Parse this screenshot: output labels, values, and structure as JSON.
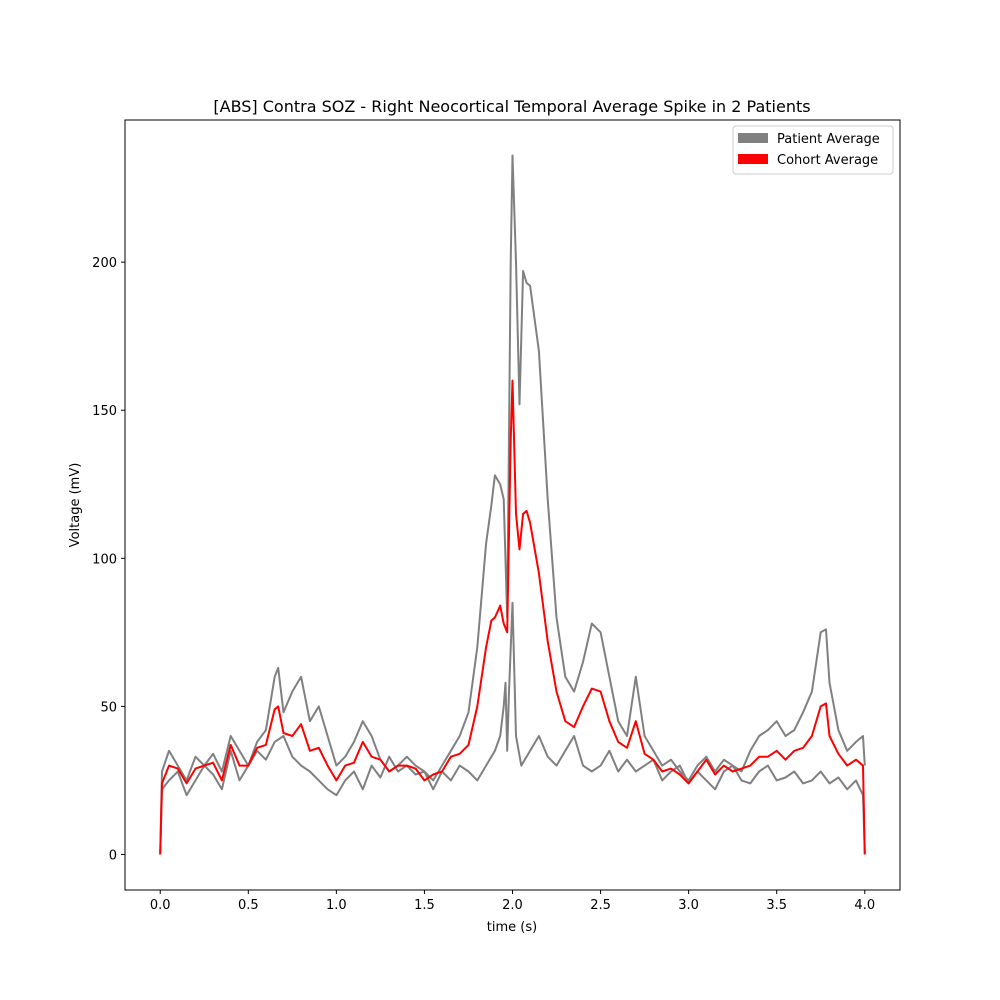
{
  "chart_data": {
    "type": "line",
    "title": "[ABS] Contra SOZ - Right Neocortical Temporal Average Spike in 2 Patients",
    "xlabel": "time (s)",
    "ylabel": "Voltage (mV)",
    "xlim": [
      -0.2,
      4.2
    ],
    "ylim": [
      -12,
      248
    ],
    "xticks": [
      0.0,
      0.5,
      1.0,
      1.5,
      2.0,
      2.5,
      3.0,
      3.5,
      4.0
    ],
    "xtick_labels": [
      "0.0",
      "0.5",
      "1.0",
      "1.5",
      "2.0",
      "2.5",
      "3.0",
      "3.5",
      "4.0"
    ],
    "yticks": [
      0,
      50,
      100,
      150,
      200
    ],
    "ytick_labels": [
      "0",
      "50",
      "100",
      "150",
      "200"
    ],
    "grid": false,
    "legend": {
      "placement": "top-right",
      "entries": [
        {
          "label": "Patient Average",
          "color": "#808080"
        },
        {
          "label": "Cohort Average",
          "color": "#ff0000"
        }
      ]
    },
    "series": [
      {
        "color": "#808080",
        "x": [
          0,
          0.01,
          0.05,
          0.1,
          0.15,
          0.2,
          0.25,
          0.3,
          0.35,
          0.4,
          0.45,
          0.5,
          0.55,
          0.6,
          0.65,
          0.67,
          0.7,
          0.75,
          0.8,
          0.85,
          0.9,
          0.95,
          1.0,
          1.05,
          1.1,
          1.15,
          1.2,
          1.25,
          1.3,
          1.35,
          1.4,
          1.45,
          1.5,
          1.55,
          1.6,
          1.65,
          1.7,
          1.75,
          1.8,
          1.85,
          1.88,
          1.9,
          1.93,
          1.95,
          1.97,
          1.99,
          2.0,
          2.02,
          2.04,
          2.06,
          2.08,
          2.1,
          2.15,
          2.2,
          2.25,
          2.3,
          2.35,
          2.4,
          2.45,
          2.5,
          2.55,
          2.6,
          2.65,
          2.7,
          2.75,
          2.8,
          2.85,
          2.9,
          2.95,
          3.0,
          3.05,
          3.1,
          3.15,
          3.2,
          3.25,
          3.3,
          3.35,
          3.4,
          3.45,
          3.5,
          3.55,
          3.6,
          3.65,
          3.7,
          3.75,
          3.78,
          3.8,
          3.85,
          3.9,
          3.95,
          3.99,
          4.0
        ],
        "values": [
          0,
          28,
          35,
          30,
          25,
          33,
          30,
          34,
          28,
          40,
          35,
          30,
          38,
          42,
          60,
          63,
          48,
          55,
          60,
          45,
          50,
          40,
          30,
          33,
          38,
          45,
          40,
          32,
          28,
          30,
          33,
          30,
          28,
          25,
          30,
          35,
          40,
          48,
          70,
          105,
          118,
          128,
          125,
          120,
          80,
          200,
          236,
          200,
          152,
          197,
          193,
          192,
          170,
          120,
          80,
          60,
          55,
          65,
          78,
          75,
          60,
          45,
          40,
          60,
          40,
          35,
          30,
          32,
          28,
          25,
          30,
          33,
          28,
          32,
          30,
          28,
          35,
          40,
          42,
          45,
          40,
          42,
          48,
          55,
          75,
          76,
          58,
          42,
          35,
          38,
          40,
          30
        ]
      },
      {
        "color": "#808080",
        "x": [
          0,
          0.01,
          0.05,
          0.1,
          0.15,
          0.2,
          0.25,
          0.3,
          0.35,
          0.4,
          0.45,
          0.5,
          0.55,
          0.6,
          0.65,
          0.7,
          0.75,
          0.8,
          0.85,
          0.9,
          0.95,
          1.0,
          1.05,
          1.1,
          1.15,
          1.2,
          1.25,
          1.3,
          1.35,
          1.4,
          1.45,
          1.5,
          1.55,
          1.6,
          1.65,
          1.7,
          1.75,
          1.8,
          1.85,
          1.9,
          1.93,
          1.95,
          1.96,
          1.97,
          1.98,
          2.0,
          2.02,
          2.05,
          2.1,
          2.15,
          2.2,
          2.25,
          2.3,
          2.35,
          2.4,
          2.45,
          2.5,
          2.55,
          2.6,
          2.65,
          2.7,
          2.75,
          2.8,
          2.85,
          2.9,
          2.95,
          3.0,
          3.05,
          3.1,
          3.15,
          3.2,
          3.25,
          3.3,
          3.35,
          3.4,
          3.45,
          3.5,
          3.55,
          3.6,
          3.65,
          3.7,
          3.75,
          3.8,
          3.85,
          3.9,
          3.95,
          3.99,
          4.0
        ],
        "values": [
          0,
          22,
          25,
          28,
          20,
          25,
          30,
          27,
          22,
          35,
          25,
          30,
          35,
          32,
          38,
          40,
          33,
          30,
          28,
          25,
          22,
          20,
          25,
          28,
          22,
          30,
          26,
          33,
          28,
          30,
          27,
          28,
          22,
          28,
          25,
          30,
          28,
          25,
          30,
          35,
          40,
          50,
          58,
          35,
          55,
          85,
          40,
          30,
          35,
          40,
          33,
          30,
          35,
          40,
          30,
          28,
          30,
          35,
          28,
          32,
          28,
          30,
          32,
          25,
          28,
          30,
          24,
          28,
          25,
          22,
          28,
          30,
          25,
          24,
          28,
          30,
          25,
          26,
          28,
          24,
          25,
          28,
          24,
          26,
          22,
          25,
          20,
          0
        ]
      },
      {
        "color": "#ff0000",
        "x": [
          0,
          0.01,
          0.05,
          0.1,
          0.15,
          0.2,
          0.25,
          0.3,
          0.35,
          0.4,
          0.45,
          0.5,
          0.55,
          0.6,
          0.65,
          0.67,
          0.7,
          0.75,
          0.8,
          0.85,
          0.9,
          0.95,
          1.0,
          1.05,
          1.1,
          1.15,
          1.2,
          1.25,
          1.3,
          1.35,
          1.4,
          1.45,
          1.5,
          1.55,
          1.6,
          1.65,
          1.7,
          1.75,
          1.8,
          1.85,
          1.88,
          1.9,
          1.93,
          1.95,
          1.97,
          1.99,
          2.0,
          2.02,
          2.04,
          2.06,
          2.08,
          2.1,
          2.15,
          2.2,
          2.25,
          2.3,
          2.35,
          2.4,
          2.45,
          2.5,
          2.55,
          2.6,
          2.65,
          2.7,
          2.75,
          2.8,
          2.85,
          2.9,
          2.95,
          3.0,
          3.05,
          3.1,
          3.15,
          3.2,
          3.25,
          3.3,
          3.35,
          3.4,
          3.45,
          3.5,
          3.55,
          3.6,
          3.65,
          3.7,
          3.75,
          3.78,
          3.8,
          3.85,
          3.9,
          3.95,
          3.99,
          4.0
        ],
        "values": [
          0,
          24,
          30,
          29,
          24,
          29,
          30,
          31,
          25,
          37,
          30,
          30,
          36,
          37,
          49,
          50,
          41,
          40,
          44,
          35,
          36,
          30,
          25,
          30,
          31,
          38,
          33,
          32,
          28,
          30,
          30,
          29,
          25,
          27,
          28,
          33,
          34,
          37,
          50,
          70,
          79,
          80,
          84,
          78,
          75,
          140,
          160,
          115,
          103,
          115,
          116,
          112,
          95,
          72,
          55,
          45,
          43,
          50,
          56,
          55,
          45,
          38,
          36,
          45,
          34,
          32,
          28,
          29,
          27,
          24,
          28,
          32,
          27,
          30,
          28,
          29,
          30,
          33,
          33,
          35,
          32,
          35,
          36,
          40,
          50,
          51,
          40,
          34,
          30,
          32,
          30,
          0
        ]
      }
    ]
  }
}
